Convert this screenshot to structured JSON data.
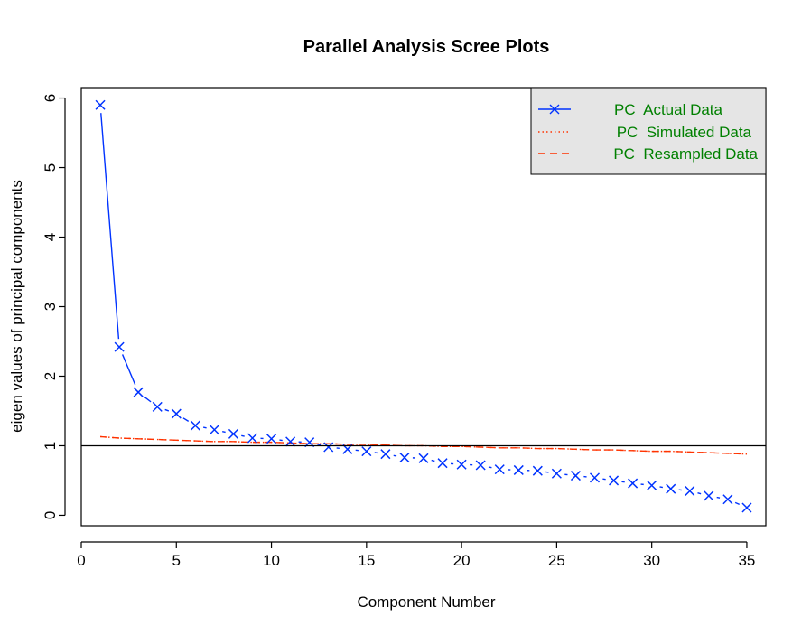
{
  "chart_data": {
    "type": "line",
    "title": "Parallel Analysis Scree Plots",
    "xlabel": "Component Number",
    "ylabel": "eigen values of principal components",
    "xlim": [
      0,
      36
    ],
    "ylim": [
      -0.15,
      6.15
    ],
    "xticks": [
      0,
      5,
      10,
      15,
      20,
      25,
      30,
      35
    ],
    "yticks": [
      0,
      1,
      2,
      3,
      4,
      5,
      6
    ],
    "reference_line_y": 1,
    "legend_position": "top-right",
    "legend_bg": "#e5e5e5",
    "legend_text_color": "#008000",
    "series": [
      {
        "name": "PC  Actual Data",
        "color": "#0033ff",
        "style": "line+x",
        "x": [
          1,
          2,
          3,
          4,
          5,
          6,
          7,
          8,
          9,
          10,
          11,
          12,
          13,
          14,
          15,
          16,
          17,
          18,
          19,
          20,
          21,
          22,
          23,
          24,
          25,
          26,
          27,
          28,
          29,
          30,
          31,
          32,
          33,
          34,
          35
        ],
        "values": [
          5.9,
          2.42,
          1.77,
          1.56,
          1.46,
          1.29,
          1.23,
          1.17,
          1.11,
          1.1,
          1.06,
          1.05,
          0.98,
          0.95,
          0.92,
          0.88,
          0.83,
          0.82,
          0.75,
          0.73,
          0.72,
          0.66,
          0.65,
          0.64,
          0.6,
          0.57,
          0.54,
          0.5,
          0.46,
          0.43,
          0.38,
          0.35,
          0.28,
          0.23,
          0.11
        ]
      },
      {
        "name": "PC  Simulated Data",
        "color": "#ff3300",
        "style": "dotted",
        "x": [
          1,
          2,
          3,
          4,
          5,
          6,
          7,
          8,
          9,
          10,
          11,
          12,
          13,
          14,
          15,
          16,
          17,
          18,
          19,
          20,
          21,
          22,
          23,
          24,
          25,
          26,
          27,
          28,
          29,
          30,
          31,
          32,
          33,
          34,
          35
        ],
        "values": [
          1.13,
          1.11,
          1.1,
          1.09,
          1.08,
          1.07,
          1.06,
          1.06,
          1.05,
          1.05,
          1.04,
          1.03,
          1.03,
          1.02,
          1.02,
          1.01,
          1.0,
          1.0,
          0.99,
          0.99,
          0.98,
          0.97,
          0.97,
          0.96,
          0.96,
          0.95,
          0.94,
          0.94,
          0.93,
          0.92,
          0.92,
          0.91,
          0.9,
          0.89,
          0.88
        ]
      },
      {
        "name": "PC  Resampled Data",
        "color": "#ff3300",
        "style": "dashed",
        "x": [
          1,
          2,
          3,
          4,
          5,
          6,
          7,
          8,
          9,
          10,
          11,
          12,
          13,
          14,
          15,
          16,
          17,
          18,
          19,
          20,
          21,
          22,
          23,
          24,
          25,
          26,
          27,
          28,
          29,
          30,
          31,
          32,
          33,
          34,
          35
        ],
        "values": [
          1.13,
          1.11,
          1.1,
          1.09,
          1.08,
          1.07,
          1.06,
          1.06,
          1.05,
          1.05,
          1.04,
          1.03,
          1.03,
          1.02,
          1.02,
          1.01,
          1.0,
          1.0,
          0.99,
          0.99,
          0.98,
          0.97,
          0.97,
          0.96,
          0.96,
          0.95,
          0.94,
          0.94,
          0.93,
          0.92,
          0.92,
          0.91,
          0.9,
          0.89,
          0.88
        ]
      }
    ]
  }
}
